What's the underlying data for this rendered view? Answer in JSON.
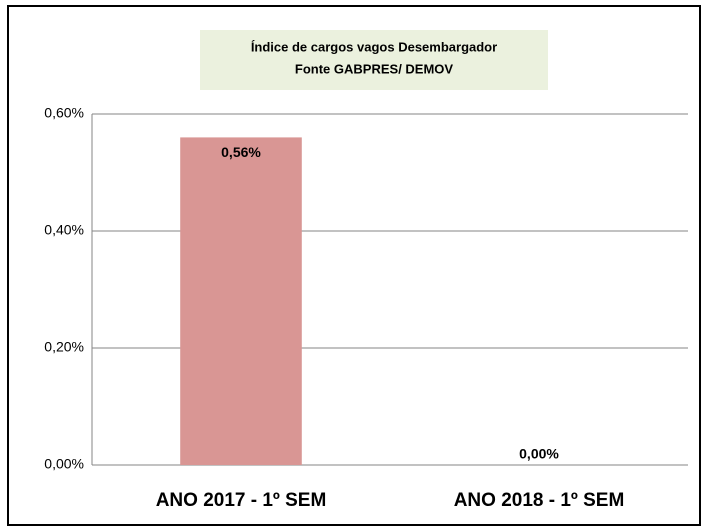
{
  "chart_data": {
    "type": "bar",
    "title": "Índice de cargos vagos Desembargador",
    "subtitle": "Fonte GABPRES/ DEMOV",
    "categories": [
      "ANO 2017 - 1º  SEM",
      "ANO 2018 - 1º SEM"
    ],
    "values": [
      0.56,
      0
    ],
    "value_labels": [
      "0,56%",
      "0,00%"
    ],
    "color": "#d99694",
    "ylim": [
      0,
      0.6
    ],
    "yticks": [
      {
        "value": 0,
        "label": "0,00%"
      },
      {
        "value": 0.2,
        "label": "0,20%"
      },
      {
        "value": 0.4,
        "label": "0,40%"
      },
      {
        "value": 0.6,
        "label": "0,60%"
      }
    ],
    "grid": true
  }
}
